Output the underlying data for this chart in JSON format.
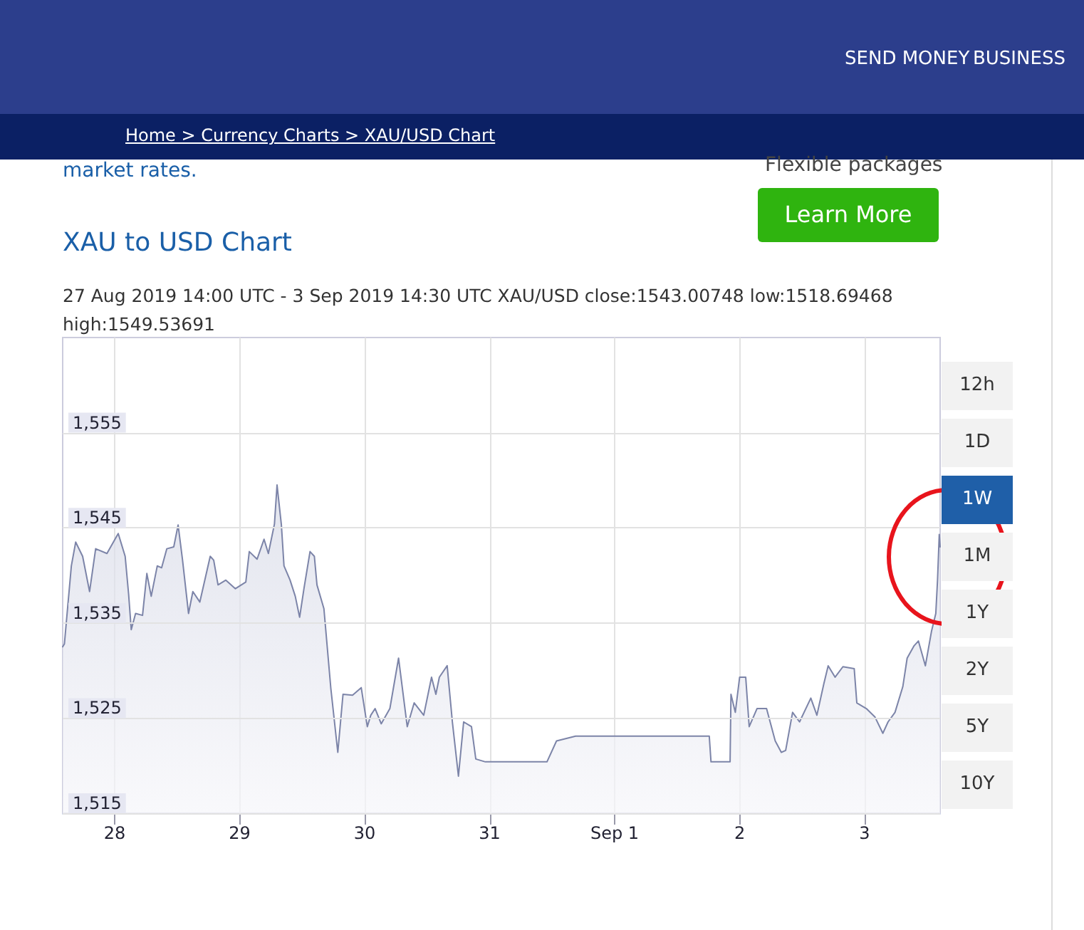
{
  "chart_data": {
    "type": "area",
    "title": "XAU to USD Chart",
    "subtitle": "27 Aug 2019 14:00 UTC - 3 Sep 2019 14:30 UTC   XAU/USD close:1543.00748 low:1518.69468 high:1549.53691",
    "x": [
      "2019-08-27T14:00",
      "2019-08-27T14:20",
      "2019-08-27T15:40",
      "2019-08-27T16:30",
      "2019-08-27T17:50",
      "2019-08-27T19:10",
      "2019-08-27T20:20",
      "2019-08-27T22:30",
      "2019-08-28T00:40",
      "2019-08-28T02:00",
      "2019-08-28T02:40",
      "2019-08-28T03:10",
      "2019-08-28T04:00",
      "2019-08-28T05:20",
      "2019-08-28T06:10",
      "2019-08-28T07:00",
      "2019-08-28T08:10",
      "2019-08-28T09:00",
      "2019-08-28T10:00",
      "2019-08-28T11:20",
      "2019-08-28T12:10",
      "2019-08-28T13:00",
      "2019-08-28T14:10",
      "2019-08-28T15:00",
      "2019-08-28T16:20",
      "2019-08-28T18:20",
      "2019-08-28T19:00",
      "2019-08-28T19:50",
      "2019-08-28T21:20",
      "2019-08-28T23:10",
      "2019-08-29T01:10",
      "2019-08-29T01:50",
      "2019-08-29T03:20",
      "2019-08-29T04:40",
      "2019-08-29T05:30",
      "2019-08-29T06:40",
      "2019-08-29T07:10",
      "2019-08-29T08:00",
      "2019-08-29T08:30",
      "2019-08-29T09:40",
      "2019-08-29T10:40",
      "2019-08-29T11:30",
      "2019-08-29T12:20",
      "2019-08-29T13:30",
      "2019-08-29T14:20",
      "2019-08-29T14:50",
      "2019-08-29T16:10",
      "2019-08-29T17:30",
      "2019-08-29T18:50",
      "2019-08-29T19:50",
      "2019-08-29T21:40",
      "2019-08-29T23:20",
      "2019-08-30T00:30",
      "2019-08-30T01:10",
      "2019-08-30T02:00",
      "2019-08-30T03:10",
      "2019-08-30T04:50",
      "2019-08-30T06:30",
      "2019-08-30T08:10",
      "2019-08-30T09:30",
      "2019-08-30T11:20",
      "2019-08-30T12:50",
      "2019-08-30T13:40",
      "2019-08-30T14:20",
      "2019-08-30T15:50",
      "2019-08-30T16:50",
      "2019-08-30T18:00",
      "2019-08-30T19:00",
      "2019-08-30T20:30",
      "2019-08-30T21:20",
      "2019-08-30T23:10",
      "2019-08-31T03:50",
      "2019-08-31T11:00",
      "2019-08-31T12:50",
      "2019-08-31T16:30",
      "2019-09-01T08:10",
      "2019-09-01T18:10",
      "2019-09-01T18:30",
      "2019-09-01T22:10",
      "2019-09-01T22:20",
      "2019-09-01T23:10",
      "2019-09-02T00:00",
      "2019-09-02T01:10",
      "2019-09-02T01:50",
      "2019-09-02T03:20",
      "2019-09-02T05:10",
      "2019-09-02T06:50",
      "2019-09-02T08:00",
      "2019-09-02T08:50",
      "2019-09-02T10:10",
      "2019-09-02T11:30",
      "2019-09-02T13:40",
      "2019-09-02T14:50",
      "2019-09-02T16:10",
      "2019-09-02T17:00",
      "2019-09-02T18:20",
      "2019-09-02T19:50",
      "2019-09-02T22:00",
      "2019-09-02T22:30",
      "2019-09-03T00:20",
      "2019-09-03T02:00",
      "2019-09-03T03:30",
      "2019-09-03T04:30",
      "2019-09-03T05:50",
      "2019-09-03T07:20",
      "2019-09-03T08:10",
      "2019-09-03T09:30",
      "2019-09-03T10:20",
      "2019-09-03T11:40",
      "2019-09-03T12:50",
      "2019-09-03T13:40",
      "2019-09-03T14:00",
      "2019-09-03T14:20",
      "2019-09-03T14:30"
    ],
    "series": [
      {
        "color": "#7c84a8",
        "values": [
          1532.5,
          1532.8,
          1541.0,
          1543.5,
          1542.0,
          1538.3,
          1542.8,
          1542.3,
          1544.4,
          1542.0,
          1538.0,
          1534.3,
          1536.0,
          1535.8,
          1540.2,
          1537.8,
          1541.0,
          1540.8,
          1542.8,
          1543.0,
          1545.3,
          1541.7,
          1536.0,
          1538.3,
          1537.2,
          1542.0,
          1541.6,
          1539.0,
          1539.5,
          1538.6,
          1539.3,
          1542.5,
          1541.7,
          1543.8,
          1542.3,
          1545.4,
          1549.5,
          1545.3,
          1541.0,
          1539.5,
          1537.8,
          1535.6,
          1538.6,
          1542.5,
          1542.0,
          1539.0,
          1536.5,
          1528.1,
          1521.4,
          1527.5,
          1527.4,
          1528.2,
          1524.1,
          1525.3,
          1526.0,
          1524.4,
          1526.0,
          1531.3,
          1524.1,
          1526.6,
          1525.3,
          1529.3,
          1527.5,
          1529.3,
          1530.5,
          1524.6,
          1518.9,
          1524.6,
          1524.1,
          1520.7,
          1520.4,
          1520.4,
          1520.4,
          1522.6,
          1523.1,
          1523.1,
          1523.1,
          1520.4,
          1520.4,
          1527.5,
          1525.6,
          1529.3,
          1529.3,
          1524.1,
          1526.0,
          1526.0,
          1522.6,
          1521.4,
          1521.6,
          1525.6,
          1524.6,
          1527.1,
          1525.3,
          1528.6,
          1530.5,
          1529.3,
          1530.4,
          1530.2,
          1526.6,
          1526.0,
          1525.1,
          1523.4,
          1524.6,
          1525.6,
          1528.3,
          1531.3,
          1532.6,
          1533.1,
          1530.5,
          1534.1,
          1536.0,
          1539.5,
          1544.3,
          1543.0
        ]
      }
    ],
    "xlim": [
      "2019-08-27T14:00",
      "2019-09-03T14:30"
    ],
    "xticks": [
      {
        "value": "2019-08-28T00:00",
        "label": "28"
      },
      {
        "value": "2019-08-29T00:00",
        "label": "29"
      },
      {
        "value": "2019-08-30T00:00",
        "label": "30"
      },
      {
        "value": "2019-08-31T00:00",
        "label": "31"
      },
      {
        "value": "2019-09-01T00:00",
        "label": "Sep 1"
      },
      {
        "value": "2019-09-02T00:00",
        "label": "2"
      },
      {
        "value": "2019-09-03T00:00",
        "label": "3"
      }
    ],
    "ylim": [
      1515,
      1565
    ],
    "yticks": [
      {
        "value": 1515,
        "label": "1,515"
      },
      {
        "value": 1525,
        "label": "1,525"
      },
      {
        "value": 1535,
        "label": "1,535"
      },
      {
        "value": 1545,
        "label": "1,545"
      },
      {
        "value": 1555,
        "label": "1,555"
      }
    ],
    "grid": true,
    "marker": "none",
    "line_style": "solid",
    "annotations": [
      "SEND MONEY",
      "BUSINESS",
      "Home > Currency Charts > XAU/USD Chart",
      "market rates.",
      "Flexible packages",
      "Learn More",
      "12h",
      "1D",
      "1W",
      "1M",
      "1Y",
      "2Y",
      "5Y",
      "10Y"
    ]
  }
}
